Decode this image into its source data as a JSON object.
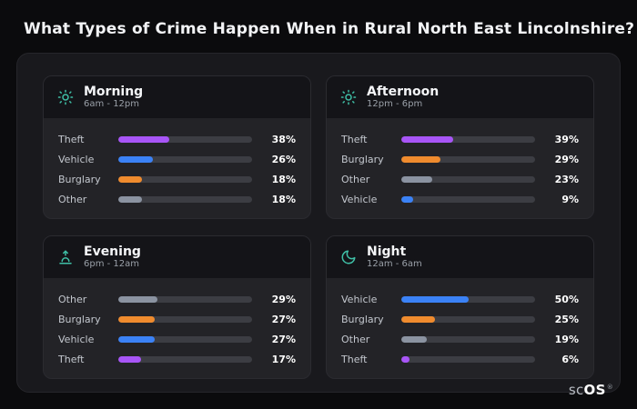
{
  "title": "What Types of Crime Happen When in Rural North East Lincolnshire?",
  "brand": {
    "prefix": "sc",
    "suffix": "OS",
    "reg": "®"
  },
  "colors": {
    "accent_teal": "#3fbfa6",
    "theft": "#a855f7",
    "vehicle": "#3b82f6",
    "burglary": "#ef8b2e",
    "other": "#8b93a1",
    "track": "#3c3d43",
    "background": "#0b0b0d",
    "panel": "#19191d",
    "card": "#232327",
    "card_header": "#141418"
  },
  "chart_data": [
    {
      "type": "bar",
      "orientation": "horizontal",
      "title": "Morning",
      "subtitle": "6am - 12pm",
      "icon": "sun-icon",
      "categories": [
        "Theft",
        "Vehicle",
        "Burglary",
        "Other"
      ],
      "values": [
        38,
        26,
        18,
        18
      ],
      "value_labels": [
        "38%",
        "26%",
        "18%",
        "18%"
      ],
      "colors": [
        "#a855f7",
        "#3b82f6",
        "#ef8b2e",
        "#8b93a1"
      ],
      "xlim": [
        0,
        100
      ]
    },
    {
      "type": "bar",
      "orientation": "horizontal",
      "title": "Afternoon",
      "subtitle": "12pm - 6pm",
      "icon": "sun-icon",
      "categories": [
        "Theft",
        "Burglary",
        "Other",
        "Vehicle"
      ],
      "values": [
        39,
        29,
        23,
        9
      ],
      "value_labels": [
        "39%",
        "29%",
        "23%",
        "9%"
      ],
      "colors": [
        "#a855f7",
        "#ef8b2e",
        "#8b93a1",
        "#3b82f6"
      ],
      "xlim": [
        0,
        100
      ]
    },
    {
      "type": "bar",
      "orientation": "horizontal",
      "title": "Evening",
      "subtitle": "6pm - 12am",
      "icon": "sunrise-icon",
      "categories": [
        "Other",
        "Burglary",
        "Vehicle",
        "Theft"
      ],
      "values": [
        29,
        27,
        27,
        17
      ],
      "value_labels": [
        "29%",
        "27%",
        "27%",
        "17%"
      ],
      "colors": [
        "#8b93a1",
        "#ef8b2e",
        "#3b82f6",
        "#a855f7"
      ],
      "xlim": [
        0,
        100
      ]
    },
    {
      "type": "bar",
      "orientation": "horizontal",
      "title": "Night",
      "subtitle": "12am - 6am",
      "icon": "moon-icon",
      "categories": [
        "Vehicle",
        "Burglary",
        "Other",
        "Theft"
      ],
      "values": [
        50,
        25,
        19,
        6
      ],
      "value_labels": [
        "50%",
        "25%",
        "19%",
        "6%"
      ],
      "colors": [
        "#3b82f6",
        "#ef8b2e",
        "#8b93a1",
        "#a855f7"
      ],
      "xlim": [
        0,
        100
      ]
    }
  ]
}
